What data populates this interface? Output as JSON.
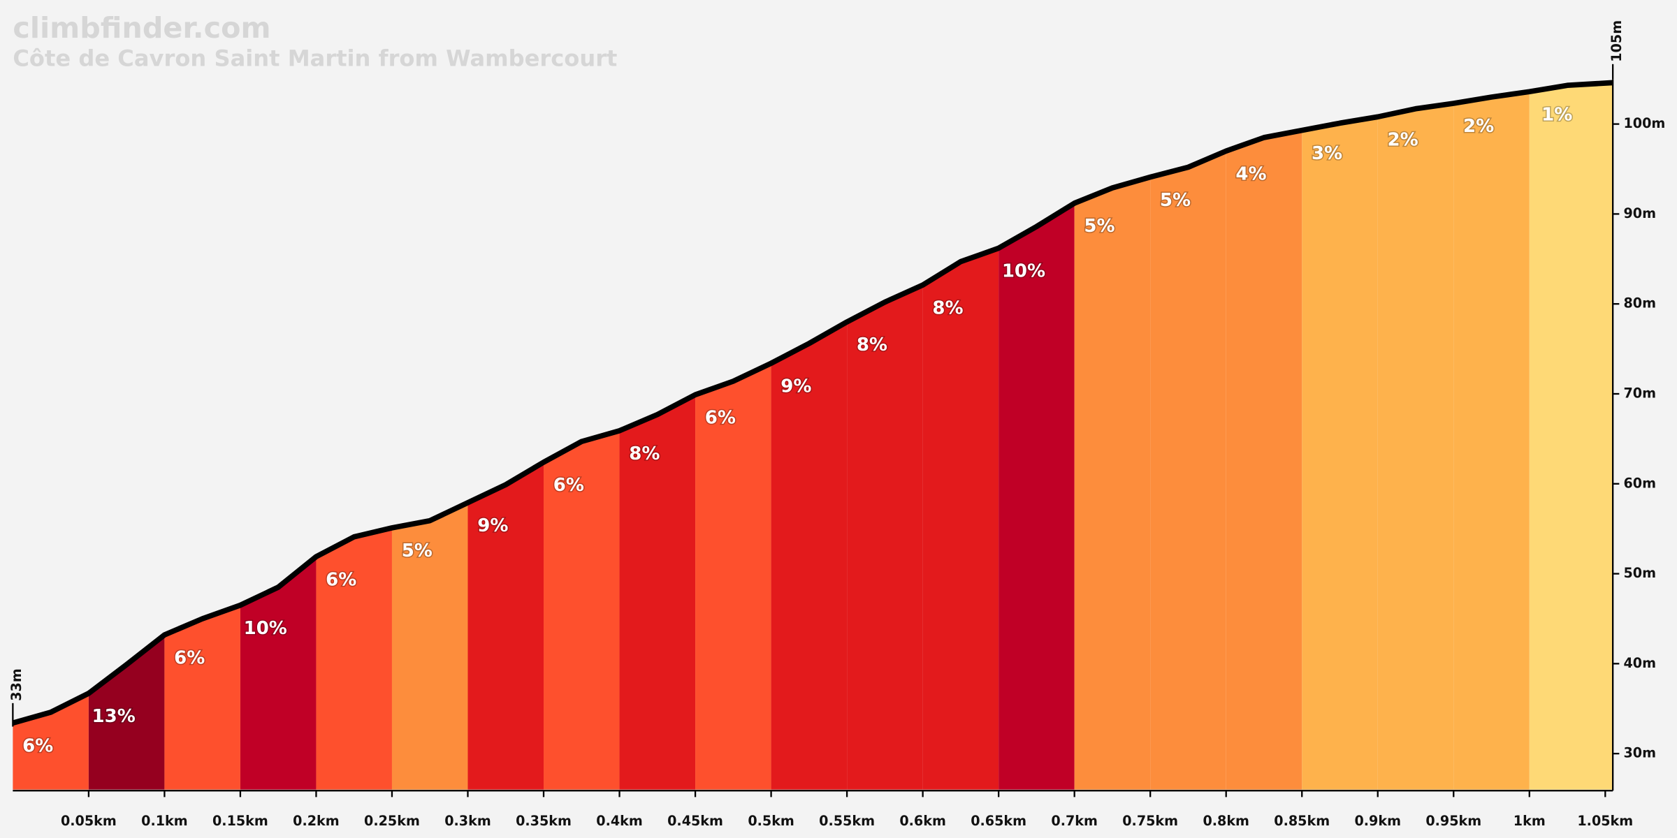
{
  "chart_data": {
    "type": "elevation-profile",
    "title": "climbfinder.com",
    "subtitle": "Côte de Cavron Saint Martin from Wambercourt",
    "xlim": [
      0,
      1.055
    ],
    "ylim": [
      26,
      110
    ],
    "xticks": [
      {
        "value": 0.05,
        "label": "0.05km"
      },
      {
        "value": 0.1,
        "label": "0.1km"
      },
      {
        "value": 0.15,
        "label": "0.15km"
      },
      {
        "value": 0.2,
        "label": "0.2km"
      },
      {
        "value": 0.25,
        "label": "0.25km"
      },
      {
        "value": 0.3,
        "label": "0.3km"
      },
      {
        "value": 0.35,
        "label": "0.35km"
      },
      {
        "value": 0.4,
        "label": "0.4km"
      },
      {
        "value": 0.45,
        "label": "0.45km"
      },
      {
        "value": 0.5,
        "label": "0.5km"
      },
      {
        "value": 0.55,
        "label": "0.55km"
      },
      {
        "value": 0.6,
        "label": "0.6km"
      },
      {
        "value": 0.65,
        "label": "0.65km"
      },
      {
        "value": 0.7,
        "label": "0.7km"
      },
      {
        "value": 0.75,
        "label": "0.75km"
      },
      {
        "value": 0.8,
        "label": "0.8km"
      },
      {
        "value": 0.85,
        "label": "0.85km"
      },
      {
        "value": 0.9,
        "label": "0.9km"
      },
      {
        "value": 0.95,
        "label": "0.95km"
      },
      {
        "value": 1,
        "label": "1km"
      },
      {
        "value": 1.05,
        "label": "1.05km"
      }
    ],
    "yticks": [
      {
        "value": 30,
        "label": "30m"
      },
      {
        "value": 40,
        "label": "40m"
      },
      {
        "value": 50,
        "label": "50m"
      },
      {
        "value": 60,
        "label": "60m"
      },
      {
        "value": 70,
        "label": "70m"
      },
      {
        "value": 80,
        "label": "80m"
      },
      {
        "value": 90,
        "label": "90m"
      },
      {
        "value": 100,
        "label": "100m"
      }
    ],
    "start_elevation": {
      "value": 33,
      "label": "33m"
    },
    "end_elevation": {
      "value": 105,
      "label": "105m"
    },
    "profile": {
      "x": [
        0,
        0.025,
        0.05,
        0.075,
        0.1,
        0.125,
        0.15,
        0.175,
        0.2,
        0.225,
        0.25,
        0.275,
        0.3,
        0.325,
        0.35,
        0.375,
        0.4,
        0.425,
        0.45,
        0.475,
        0.5,
        0.525,
        0.55,
        0.575,
        0.6,
        0.625,
        0.65,
        0.675,
        0.7,
        0.725,
        0.75,
        0.775,
        0.8,
        0.825,
        0.85,
        0.875,
        0.9,
        0.925,
        0.95,
        0.975,
        1,
        1.025,
        1.055
      ],
      "elevation": [
        33.4,
        34.6,
        36.7,
        39.9,
        43.2,
        45,
        46.5,
        48.5,
        51.9,
        54.1,
        55.1,
        55.9,
        57.9,
        59.9,
        62.4,
        64.7,
        65.9,
        67.7,
        69.9,
        71.4,
        73.4,
        75.6,
        78,
        80.2,
        82.1,
        84.7,
        86.2,
        88.6,
        91.2,
        92.9,
        94.1,
        95.2,
        97,
        98.5,
        99.3,
        100.1,
        100.8,
        101.7,
        102.3,
        103,
        103.6,
        104.3,
        104.6
      ],
      "color": "#000000"
    },
    "segments": {
      "bins": [
        0,
        0.05,
        0.1,
        0.15,
        0.2,
        0.25,
        0.3,
        0.35,
        0.4,
        0.45,
        0.5,
        0.55,
        0.6,
        0.65,
        0.7,
        0.75,
        0.8,
        0.85,
        0.9,
        0.95,
        1,
        1.055
      ],
      "values": [
        6,
        13,
        6,
        10,
        6,
        5,
        9,
        6,
        8,
        6,
        9,
        8,
        8,
        10,
        5,
        5,
        4,
        3,
        2,
        2,
        1
      ],
      "value_labels": [
        "6%",
        "13%",
        "6%",
        "10%",
        "6%",
        "5%",
        "9%",
        "6%",
        "8%",
        "6%",
        "9%",
        "8%",
        "8%",
        "10%",
        "5%",
        "5%",
        "4%",
        "3%",
        "2%",
        "2%",
        "1%"
      ],
      "colors": [
        "#fe502d",
        "#95001f",
        "#fe502d",
        "#c00026",
        "#fe502d",
        "#fd8d3c",
        "#e31a1c",
        "#fe502d",
        "#e31a1c",
        "#fe502d",
        "#e31a1c",
        "#e31a1c",
        "#e31a1c",
        "#c00026",
        "#fd8d3c",
        "#fd8d3c",
        "#fd8d3c",
        "#feb24c",
        "#feb24c",
        "#feb24c",
        "#fed976"
      ]
    }
  }
}
